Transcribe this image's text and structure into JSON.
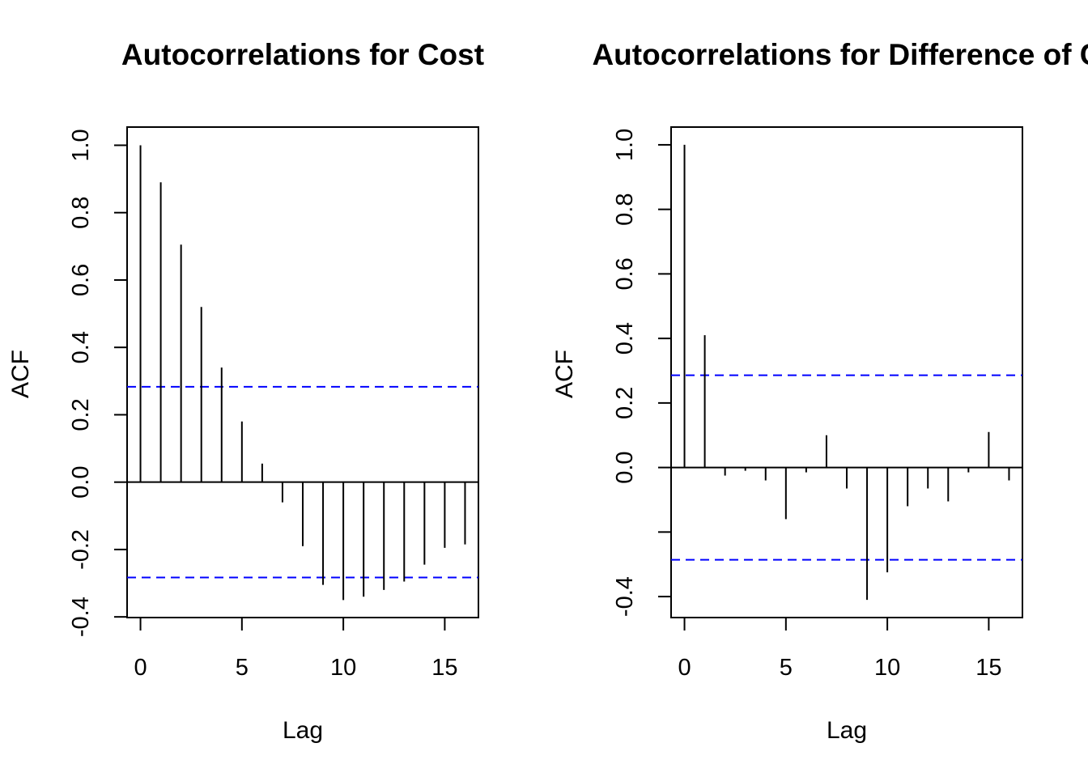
{
  "chart_data": [
    {
      "type": "bar",
      "title": "Autocorrelations for Cost",
      "xlabel": "Lag",
      "ylabel": "ACF",
      "xlim": [
        -0.66,
        16.66
      ],
      "ylim": [
        -0.402,
        1.054
      ],
      "xticks": [
        0,
        5,
        10,
        15
      ],
      "xtick_labels": [
        "0",
        "5",
        "10",
        "15"
      ],
      "yticks": [
        -0.4,
        -0.2,
        0.0,
        0.2,
        0.4,
        0.6,
        0.8,
        1.0
      ],
      "ytick_labels": [
        "-0.4",
        "-0.2",
        "0.0",
        "0.2",
        "0.4",
        "0.6",
        "0.8",
        "1.0"
      ],
      "conf_limit": 0.283,
      "conf_color": "#0000ff",
      "lags": [
        0,
        1,
        2,
        3,
        4,
        5,
        6,
        7,
        8,
        9,
        10,
        11,
        12,
        13,
        14,
        15,
        16
      ],
      "values": [
        1.0,
        0.89,
        0.705,
        0.52,
        0.34,
        0.18,
        0.055,
        -0.06,
        -0.19,
        -0.305,
        -0.35,
        -0.34,
        -0.32,
        -0.295,
        -0.245,
        -0.195,
        -0.185
      ],
      "grid": false,
      "legend": "none"
    },
    {
      "type": "bar",
      "title": "Autocorrelations for Difference of C",
      "xlabel": "Lag",
      "ylabel": "ACF",
      "xlim": [
        -0.66,
        16.66
      ],
      "ylim": [
        -0.465,
        1.055
      ],
      "xticks": [
        0,
        5,
        10,
        15
      ],
      "xtick_labels": [
        "0",
        "5",
        "10",
        "15"
      ],
      "yticks": [
        -0.4,
        0.0,
        0.2,
        0.4,
        0.6,
        0.8,
        1.0
      ],
      "ytick_labels": [
        "-0.4",
        "0.0",
        "0.2",
        "0.4",
        "0.6",
        "0.8",
        "1.0"
      ],
      "yticks_unlabeled": [
        -0.2
      ],
      "conf_limit": 0.286,
      "conf_color": "#0000ff",
      "lags": [
        0,
        1,
        2,
        3,
        4,
        5,
        6,
        7,
        8,
        9,
        10,
        11,
        12,
        13,
        14,
        15,
        16
      ],
      "values": [
        1.0,
        0.41,
        -0.025,
        -0.01,
        -0.04,
        -0.16,
        -0.015,
        0.1,
        -0.065,
        -0.41,
        -0.325,
        -0.12,
        -0.065,
        -0.105,
        -0.015,
        0.11,
        -0.04
      ],
      "grid": false,
      "legend": "none"
    }
  ]
}
